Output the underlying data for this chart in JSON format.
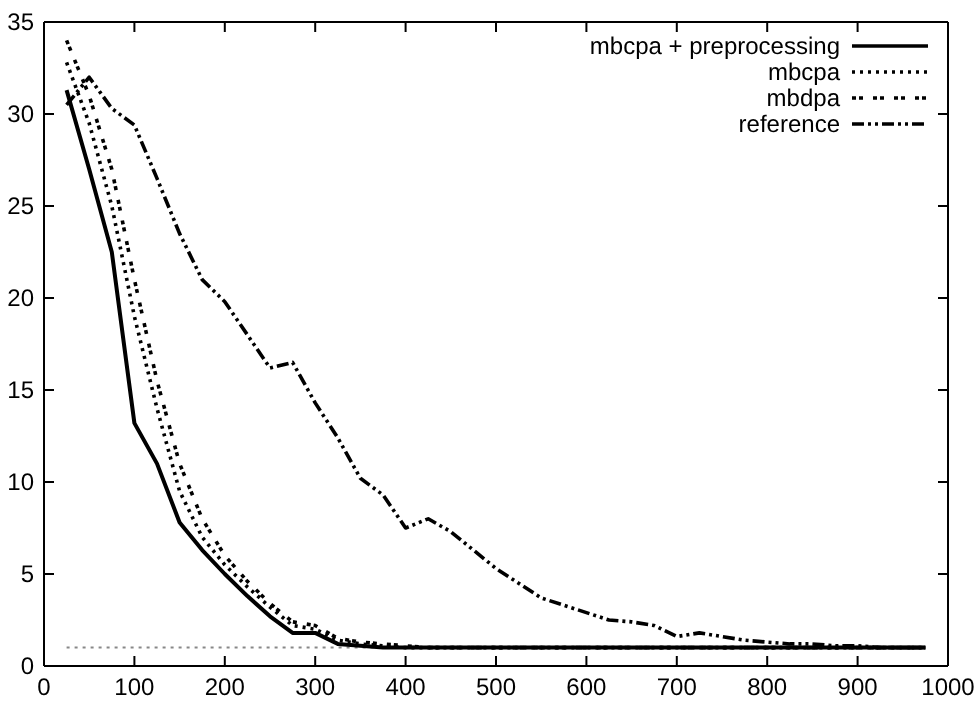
{
  "chart_data": {
    "type": "line",
    "xlim": [
      0,
      1000
    ],
    "ylim": [
      0,
      35
    ],
    "xticks": [
      0,
      100,
      200,
      300,
      400,
      500,
      600,
      700,
      800,
      900,
      1000
    ],
    "yticks": [
      0,
      5,
      10,
      15,
      20,
      25,
      30,
      35
    ],
    "legend": "top right",
    "grid": false,
    "marker": "none",
    "x": [
      25,
      50,
      75,
      100,
      125,
      150,
      175,
      200,
      225,
      250,
      275,
      300,
      325,
      350,
      375,
      400,
      425,
      450,
      475,
      500,
      525,
      550,
      575,
      600,
      625,
      650,
      675,
      700,
      725,
      750,
      775,
      800,
      825,
      850,
      875,
      900,
      925,
      950,
      975
    ],
    "series": [
      {
        "name": "mbcpa + preprocessing",
        "color": "#000000",
        "line_style": "solid",
        "values": [
          31.3,
          27,
          22.5,
          13.2,
          11,
          7.8,
          6.3,
          5,
          3.8,
          2.7,
          1.8,
          1.8,
          1.2,
          1.1,
          1,
          1,
          1,
          1,
          1,
          1,
          1,
          1,
          1,
          1,
          1,
          1,
          1,
          1,
          1,
          1,
          1,
          1,
          1,
          1,
          1,
          1,
          1,
          1,
          1
        ]
      },
      {
        "name": "mbcpa",
        "color": "#000000",
        "line_style": "dotted",
        "values": [
          32.8,
          29.5,
          25,
          19,
          14,
          9.5,
          7,
          5.5,
          4.3,
          3.2,
          2.2,
          2,
          1.4,
          1.2,
          1.1,
          1,
          1,
          1,
          1,
          1,
          1,
          1,
          1,
          1,
          1,
          1,
          1,
          1,
          1,
          1,
          1,
          1,
          1,
          1,
          1,
          1,
          1,
          1,
          1
        ]
      },
      {
        "name": "mbdpa",
        "color": "#000000",
        "line_style": "dashed",
        "values": [
          34,
          31,
          27,
          21,
          15.5,
          11,
          8,
          6,
          4.6,
          3.4,
          2.4,
          2.2,
          1.5,
          1.3,
          1.2,
          1.1,
          1,
          1,
          1,
          1,
          1,
          1,
          1,
          1,
          1,
          1,
          1,
          1,
          1,
          1,
          1,
          1,
          1,
          1,
          1,
          1,
          1,
          1,
          1
        ]
      },
      {
        "name": "reference",
        "color": "#000000",
        "line_style": "dashdot",
        "values": [
          30.5,
          32,
          30.3,
          29.4,
          26.5,
          23.5,
          21,
          19.8,
          18,
          16.2,
          16.5,
          14.3,
          12.4,
          10.2,
          9.3,
          7.5,
          8,
          7.3,
          6.3,
          5.3,
          4.5,
          3.7,
          3.3,
          2.9,
          2.5,
          2.4,
          2.2,
          1.6,
          1.8,
          1.6,
          1.4,
          1.3,
          1.2,
          1.2,
          1.1,
          1.1,
          1,
          1,
          1
        ]
      }
    ],
    "ref_lines": [
      {
        "axis": "y",
        "value": 1,
        "color": "#888888",
        "line_style": "dotted"
      }
    ]
  }
}
